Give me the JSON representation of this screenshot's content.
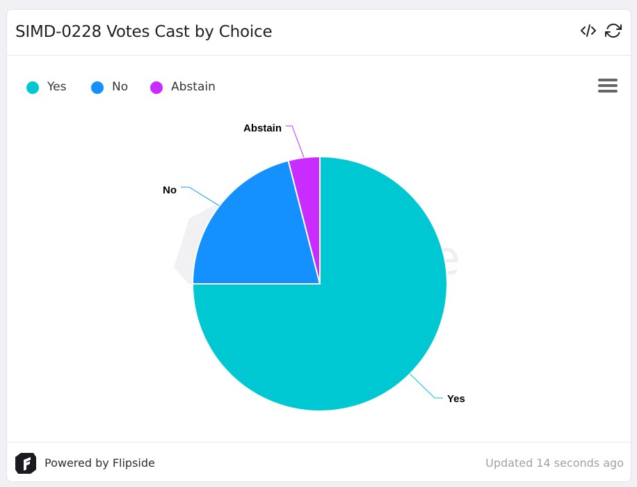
{
  "header": {
    "title": "SIMD-0228 Votes Cast by Choice"
  },
  "icons": {
    "code": "code-icon",
    "refresh": "refresh-icon",
    "menu": "hamburger-menu-icon",
    "logo": "flipside-logo-icon"
  },
  "legend": {
    "items": [
      {
        "label": "Yes",
        "color": "#00c8d2"
      },
      {
        "label": "No",
        "color": "#1491fe"
      },
      {
        "label": "Abstain",
        "color": "#c82cff"
      }
    ]
  },
  "chart_data": {
    "type": "pie",
    "title": "SIMD-0228 Votes Cast by Choice",
    "legend": "top-left",
    "slices": [
      {
        "label": "Yes",
        "value": 75.0,
        "color": "#00c8d2"
      },
      {
        "label": "No",
        "value": 21.0,
        "color": "#1491fe"
      },
      {
        "label": "Abstain",
        "value": 4.0,
        "color": "#c82cff"
      }
    ]
  },
  "footer": {
    "powered_by": "Powered by Flipside",
    "updated": "Updated 14 seconds ago"
  }
}
